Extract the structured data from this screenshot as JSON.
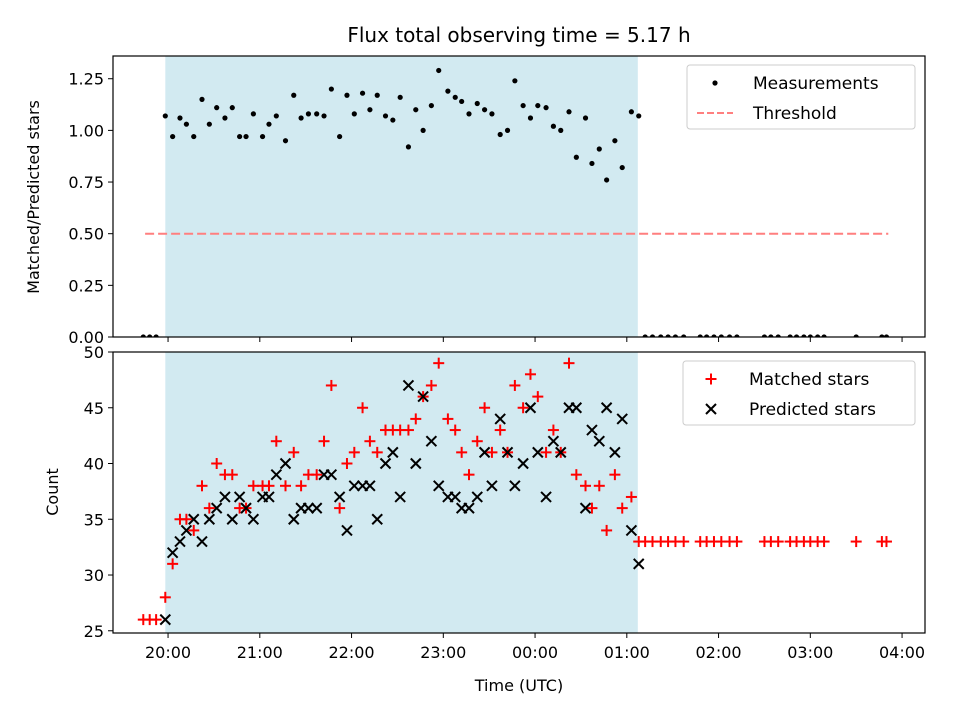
{
  "title": "Flux total observing time = 5.17 h",
  "xlabel": "Time (UTC)",
  "chart_data": [
    {
      "type": "scatter",
      "ylabel": "Matched/Predicted stars",
      "ylim": [
        0,
        1.36
      ],
      "yticks": [
        "0.00",
        "0.25",
        "0.50",
        "0.75",
        "1.00",
        "1.25"
      ],
      "ytick_values": [
        0,
        0.25,
        0.5,
        0.75,
        1.0,
        1.25
      ],
      "xlim": [
        19.4,
        28.25
      ],
      "xticks": [
        "20:00",
        "21:00",
        "22:00",
        "23:00",
        "00:00",
        "01:00",
        "02:00",
        "03:00",
        "04:00"
      ],
      "xtick_values": [
        20,
        21,
        22,
        23,
        24,
        25,
        26,
        27,
        28
      ],
      "shaded_span": [
        19.97,
        25.12
      ],
      "shade_color": "#add8e6",
      "legend_position": "top-right",
      "threshold": {
        "name": "Threshold",
        "y": 0.5,
        "x": [
          19.75,
          27.85
        ],
        "color": "#ff7f7f"
      },
      "series": [
        {
          "name": "Measurements",
          "color": "#000000",
          "x": [
            19.73,
            19.8,
            19.87,
            19.97,
            20.05,
            20.13,
            20.2,
            20.28,
            20.37,
            20.45,
            20.53,
            20.62,
            20.7,
            20.78,
            20.85,
            20.93,
            21.03,
            21.1,
            21.18,
            21.28,
            21.37,
            21.45,
            21.53,
            21.62,
            21.7,
            21.78,
            21.87,
            21.95,
            22.03,
            22.12,
            22.2,
            22.28,
            22.37,
            22.45,
            22.53,
            22.62,
            22.7,
            22.78,
            22.87,
            22.95,
            23.05,
            23.13,
            23.2,
            23.28,
            23.37,
            23.45,
            23.53,
            23.62,
            23.7,
            23.78,
            23.87,
            23.95,
            24.03,
            24.12,
            24.2,
            24.28,
            24.37,
            24.45,
            24.55,
            24.62,
            24.7,
            24.78,
            24.87,
            24.95,
            25.05,
            25.13,
            25.2,
            25.28,
            25.37,
            25.45,
            25.53,
            25.62,
            25.8,
            25.87,
            25.95,
            26.03,
            26.12,
            26.2,
            26.5,
            26.57,
            26.65,
            26.78,
            26.85,
            26.93,
            27.0,
            27.08,
            27.15,
            27.5,
            27.78,
            27.83
          ],
          "y": [
            0,
            0,
            0,
            1.07,
            0.97,
            1.06,
            1.03,
            0.97,
            1.15,
            1.03,
            1.11,
            1.06,
            1.11,
            0.97,
            0.97,
            1.08,
            0.97,
            1.03,
            1.07,
            0.95,
            1.17,
            1.06,
            1.08,
            1.08,
            1.07,
            1.2,
            0.97,
            1.17,
            1.08,
            1.18,
            1.1,
            1.17,
            1.07,
            1.05,
            1.16,
            0.92,
            1.1,
            1.0,
            1.12,
            1.29,
            1.19,
            1.16,
            1.14,
            1.08,
            1.13,
            1.1,
            1.08,
            0.98,
            1.0,
            1.24,
            1.12,
            1.06,
            1.12,
            1.11,
            1.02,
            1.0,
            1.09,
            0.87,
            1.06,
            0.84,
            0.91,
            0.76,
            0.95,
            0.82,
            1.09,
            1.07,
            0,
            0,
            0,
            0,
            0,
            0,
            0,
            0,
            0,
            0,
            0,
            0,
            0,
            0,
            0,
            0,
            0,
            0,
            0,
            0,
            0,
            0,
            0,
            0
          ]
        }
      ]
    },
    {
      "type": "scatter",
      "ylabel": "Count",
      "ylim": [
        24.8,
        50
      ],
      "yticks": [
        "25",
        "30",
        "35",
        "40",
        "45",
        "50"
      ],
      "ytick_values": [
        25,
        30,
        35,
        40,
        45,
        50
      ],
      "xlim": [
        19.4,
        28.25
      ],
      "xticks": [
        "20:00",
        "21:00",
        "22:00",
        "23:00",
        "00:00",
        "01:00",
        "02:00",
        "03:00",
        "04:00"
      ],
      "xtick_values": [
        20,
        21,
        22,
        23,
        24,
        25,
        26,
        27,
        28
      ],
      "shaded_span": [
        19.97,
        25.12
      ],
      "shade_color": "#add8e6",
      "legend_position": "top-right",
      "series": [
        {
          "name": "Matched stars",
          "marker": "plus",
          "color": "#ff0000",
          "x": [
            19.73,
            19.8,
            19.87,
            19.97,
            20.05,
            20.13,
            20.2,
            20.28,
            20.37,
            20.45,
            20.53,
            20.62,
            20.7,
            20.78,
            20.85,
            20.93,
            21.03,
            21.1,
            21.18,
            21.28,
            21.37,
            21.45,
            21.53,
            21.62,
            21.7,
            21.78,
            21.87,
            21.95,
            22.03,
            22.12,
            22.2,
            22.28,
            22.37,
            22.45,
            22.53,
            22.62,
            22.7,
            22.78,
            22.87,
            22.95,
            23.05,
            23.13,
            23.2,
            23.28,
            23.37,
            23.45,
            23.53,
            23.62,
            23.7,
            23.78,
            23.87,
            23.95,
            24.03,
            24.12,
            24.2,
            24.28,
            24.37,
            24.45,
            24.55,
            24.62,
            24.7,
            24.78,
            24.87,
            24.95,
            25.05,
            25.13,
            25.2,
            25.28,
            25.37,
            25.45,
            25.53,
            25.62,
            25.8,
            25.87,
            25.95,
            26.03,
            26.12,
            26.2,
            26.5,
            26.57,
            26.65,
            26.78,
            26.85,
            26.93,
            27.0,
            27.08,
            27.15,
            27.5,
            27.78,
            27.83
          ],
          "y": [
            26,
            26,
            26,
            28,
            31,
            35,
            35,
            34,
            38,
            36,
            40,
            39,
            39,
            36,
            36,
            38,
            38,
            38,
            42,
            38,
            41,
            38,
            39,
            39,
            42,
            47,
            36,
            40,
            41,
            45,
            42,
            41,
            43,
            43,
            43,
            43,
            44,
            46,
            47,
            49,
            44,
            43,
            41,
            39,
            42,
            45,
            41,
            43,
            41,
            47,
            45,
            48,
            46,
            41,
            43,
            41,
            49,
            39,
            38,
            36,
            38,
            34,
            39,
            36,
            37,
            33,
            33,
            33,
            33,
            33,
            33,
            33,
            33,
            33,
            33,
            33,
            33,
            33,
            33,
            33,
            33,
            33,
            33,
            33,
            33,
            33,
            33,
            33,
            33,
            33
          ]
        },
        {
          "name": "Predicted stars",
          "marker": "x",
          "color": "#000000",
          "x": [
            19.97,
            20.05,
            20.13,
            20.2,
            20.28,
            20.37,
            20.45,
            20.53,
            20.62,
            20.7,
            20.78,
            20.85,
            20.93,
            21.03,
            21.1,
            21.18,
            21.28,
            21.37,
            21.45,
            21.53,
            21.62,
            21.7,
            21.78,
            21.87,
            21.95,
            22.03,
            22.12,
            22.2,
            22.28,
            22.37,
            22.45,
            22.53,
            22.62,
            22.7,
            22.78,
            22.87,
            22.95,
            23.05,
            23.13,
            23.2,
            23.28,
            23.37,
            23.45,
            23.53,
            23.62,
            23.7,
            23.78,
            23.87,
            23.95,
            24.03,
            24.12,
            24.2,
            24.28,
            24.37,
            24.45,
            24.55,
            24.62,
            24.7,
            24.78,
            24.87,
            24.95,
            25.05,
            25.13
          ],
          "y": [
            26,
            32,
            33,
            34,
            35,
            33,
            35,
            36,
            37,
            35,
            37,
            36,
            35,
            37,
            37,
            39,
            40,
            35,
            36,
            36,
            36,
            39,
            39,
            37,
            34,
            38,
            38,
            38,
            35,
            40,
            41,
            37,
            47,
            40,
            46,
            42,
            38,
            37,
            37,
            36,
            36,
            37,
            41,
            38,
            44,
            41,
            38,
            40,
            45,
            41,
            37,
            42,
            41,
            45,
            45,
            36,
            43,
            42,
            45,
            41,
            44,
            34,
            31
          ]
        }
      ]
    }
  ]
}
